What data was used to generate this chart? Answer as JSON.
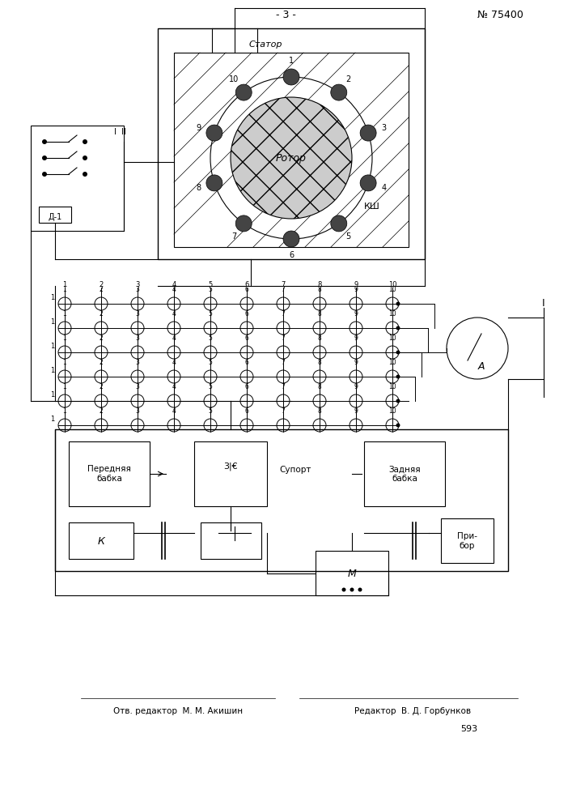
{
  "title_page_num": "- 3 -",
  "patent_num": "№ 75400",
  "stator_label": "Статор",
  "rotor_label": "Ротор",
  "ksh_label": "КШ",
  "ip_label": "I  II",
  "d1_label": "Д-1",
  "i_label": "I",
  "a_label": "А",
  "perednyaya_label": "Передняя\nбабка",
  "supor_label": "Супорт",
  "zadnyaya_label": "Задняя\nбабка",
  "k_label": "К",
  "m_label": "М",
  "pribor_label": "При-\nбор",
  "editor1": "Отв. редактор  М. М. Акишин",
  "editor2": "Редактор  В. Д. Горбунков",
  "page_num": "593",
  "bg_color": "#ffffff",
  "line_color": "#000000"
}
